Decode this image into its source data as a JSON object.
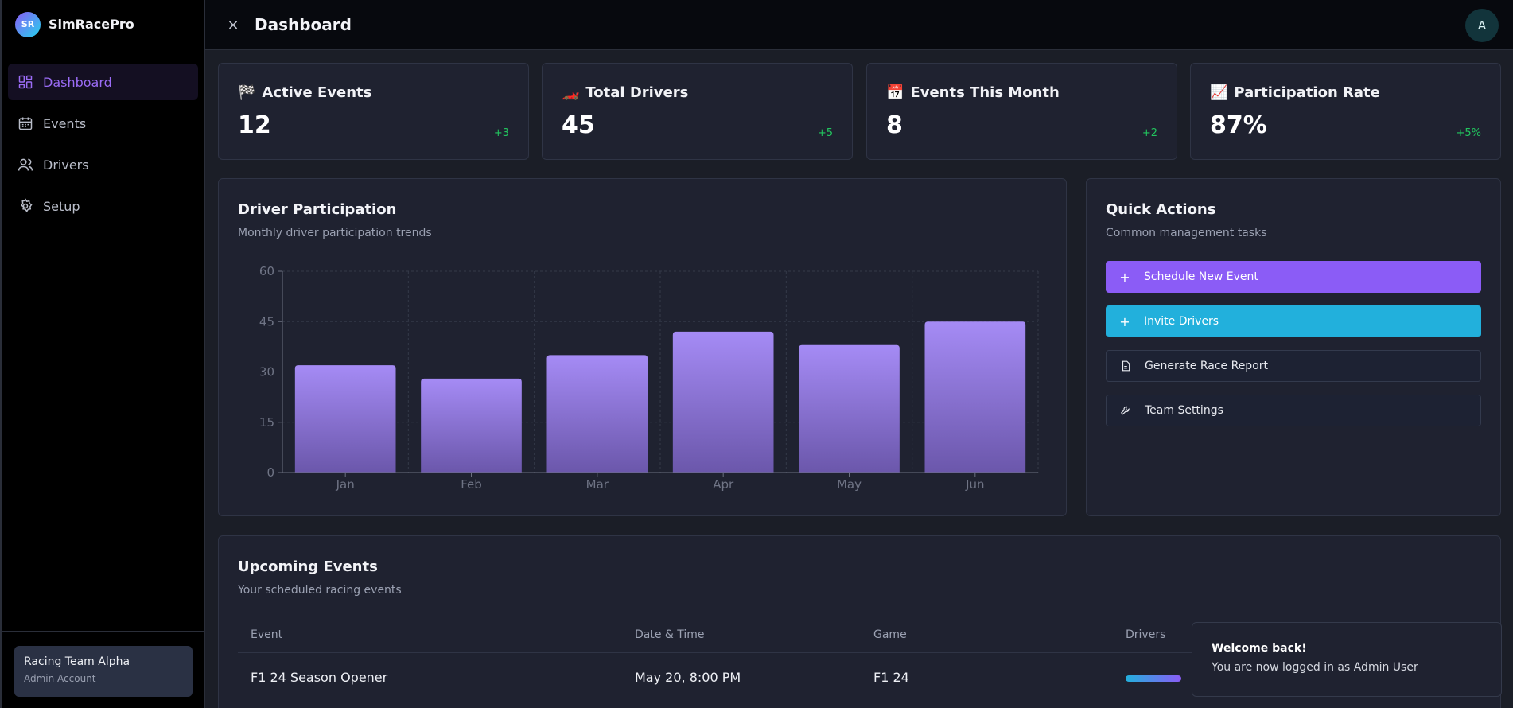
{
  "brand": {
    "logo_text": "SR",
    "name": "SimRacePro"
  },
  "sidebar": {
    "items": [
      {
        "label": "Dashboard",
        "icon": "dashboard-icon",
        "active": true
      },
      {
        "label": "Events",
        "icon": "calendar-icon"
      },
      {
        "label": "Drivers",
        "icon": "users-icon"
      },
      {
        "label": "Setup",
        "icon": "gear-icon"
      }
    ],
    "team": {
      "name": "Racing Team Alpha",
      "role": "Admin Account"
    }
  },
  "header": {
    "close_icon": "×",
    "title": "Dashboard",
    "avatar": "A"
  },
  "stats": [
    {
      "icon": "🏁",
      "title": "Active Events",
      "value": "12",
      "delta": "+3"
    },
    {
      "icon": "🏎️",
      "title": "Total Drivers",
      "value": "45",
      "delta": "+5"
    },
    {
      "icon": "📅",
      "title": "Events This Month",
      "value": "8",
      "delta": "+2"
    },
    {
      "icon": "📈",
      "title": "Participation Rate",
      "value": "87%",
      "delta": "+5%"
    }
  ],
  "participation": {
    "title": "Driver Participation",
    "subtitle": "Monthly driver participation trends"
  },
  "chart_data": {
    "type": "bar",
    "categories": [
      "Jan",
      "Feb",
      "Mar",
      "Apr",
      "May",
      "Jun"
    ],
    "values": [
      32,
      28,
      35,
      42,
      38,
      45
    ],
    "ylim": [
      0,
      60
    ],
    "yticks": [
      0,
      15,
      30,
      45,
      60
    ],
    "grid": true,
    "bar_color_top": "#a58bf5",
    "bar_color_bottom": "#6b57ab"
  },
  "quick_actions": {
    "title": "Quick Actions",
    "subtitle": "Common management tasks",
    "buttons": [
      {
        "label": "Schedule New Event",
        "icon": "plus-icon",
        "style": "purple"
      },
      {
        "label": "Invite Drivers",
        "icon": "plus-icon",
        "style": "cyan"
      },
      {
        "label": "Generate Race Report",
        "icon": "document-icon",
        "style": "outline"
      },
      {
        "label": "Team Settings",
        "icon": "wrench-icon",
        "style": "outline"
      }
    ]
  },
  "upcoming": {
    "title": "Upcoming Events",
    "subtitle": "Your scheduled racing events",
    "columns": [
      "Event",
      "Date & Time",
      "Game",
      "Drivers"
    ],
    "rows": [
      {
        "event": "F1 24 Season Opener",
        "datetime": "May 20, 8:00 PM",
        "game": "F1 24"
      }
    ]
  },
  "toast": {
    "title": "Welcome back!",
    "message": "You are now logged in as Admin User"
  },
  "colors": {
    "accent": "#8b5cf6",
    "cyan": "#22b0dc",
    "positive": "#22c55e"
  }
}
